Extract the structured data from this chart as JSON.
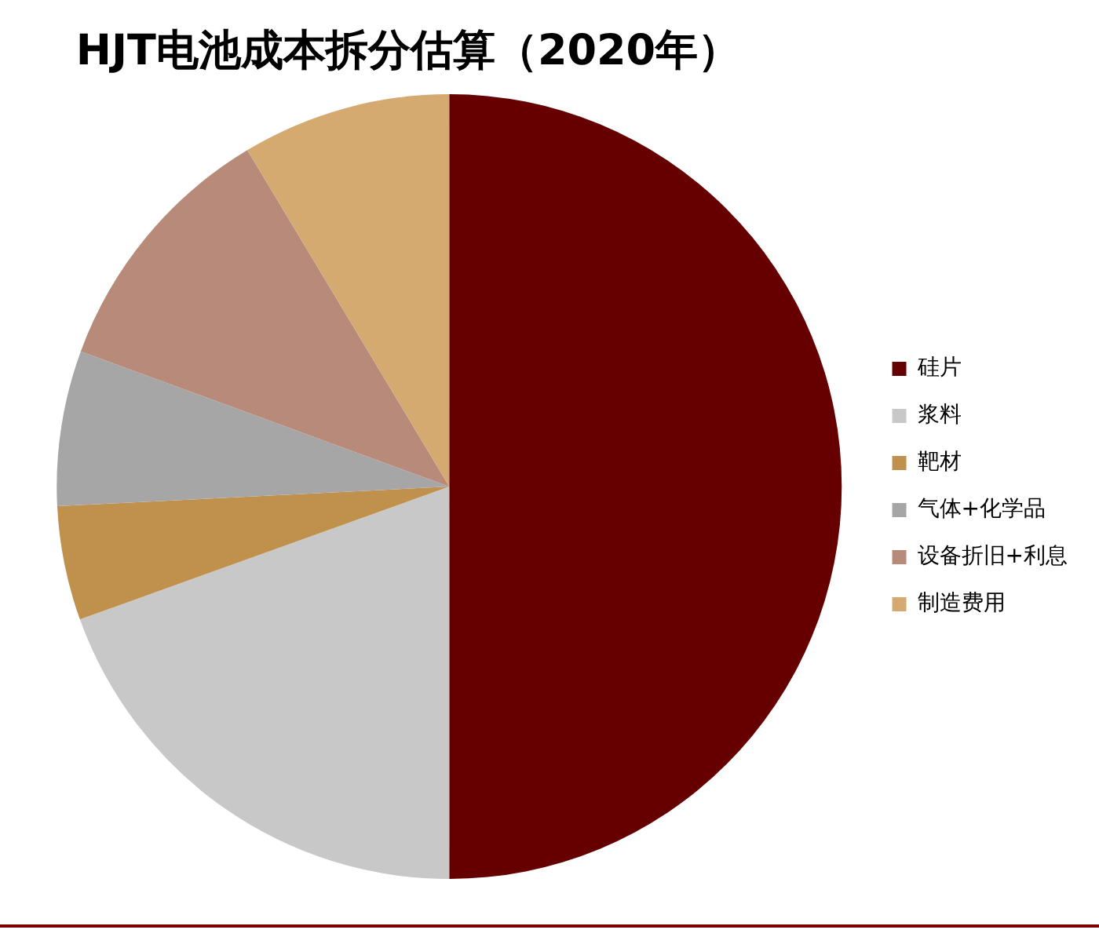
{
  "chart_data": {
    "type": "pie",
    "title": "HJT电池成本拆分估算（2020年）",
    "categories": [
      "硅片",
      "浆料",
      "靶材",
      "气体+化学品",
      "设备折旧+利息",
      "制造费用"
    ],
    "values": [
      50,
      19.5,
      4.7,
      6.4,
      10.8,
      8.6
    ],
    "colors": [
      "#660000",
      "#c8c8c8",
      "#c0904d",
      "#a6a6a6",
      "#b88a7a",
      "#d4aa70"
    ],
    "legend": "right"
  }
}
